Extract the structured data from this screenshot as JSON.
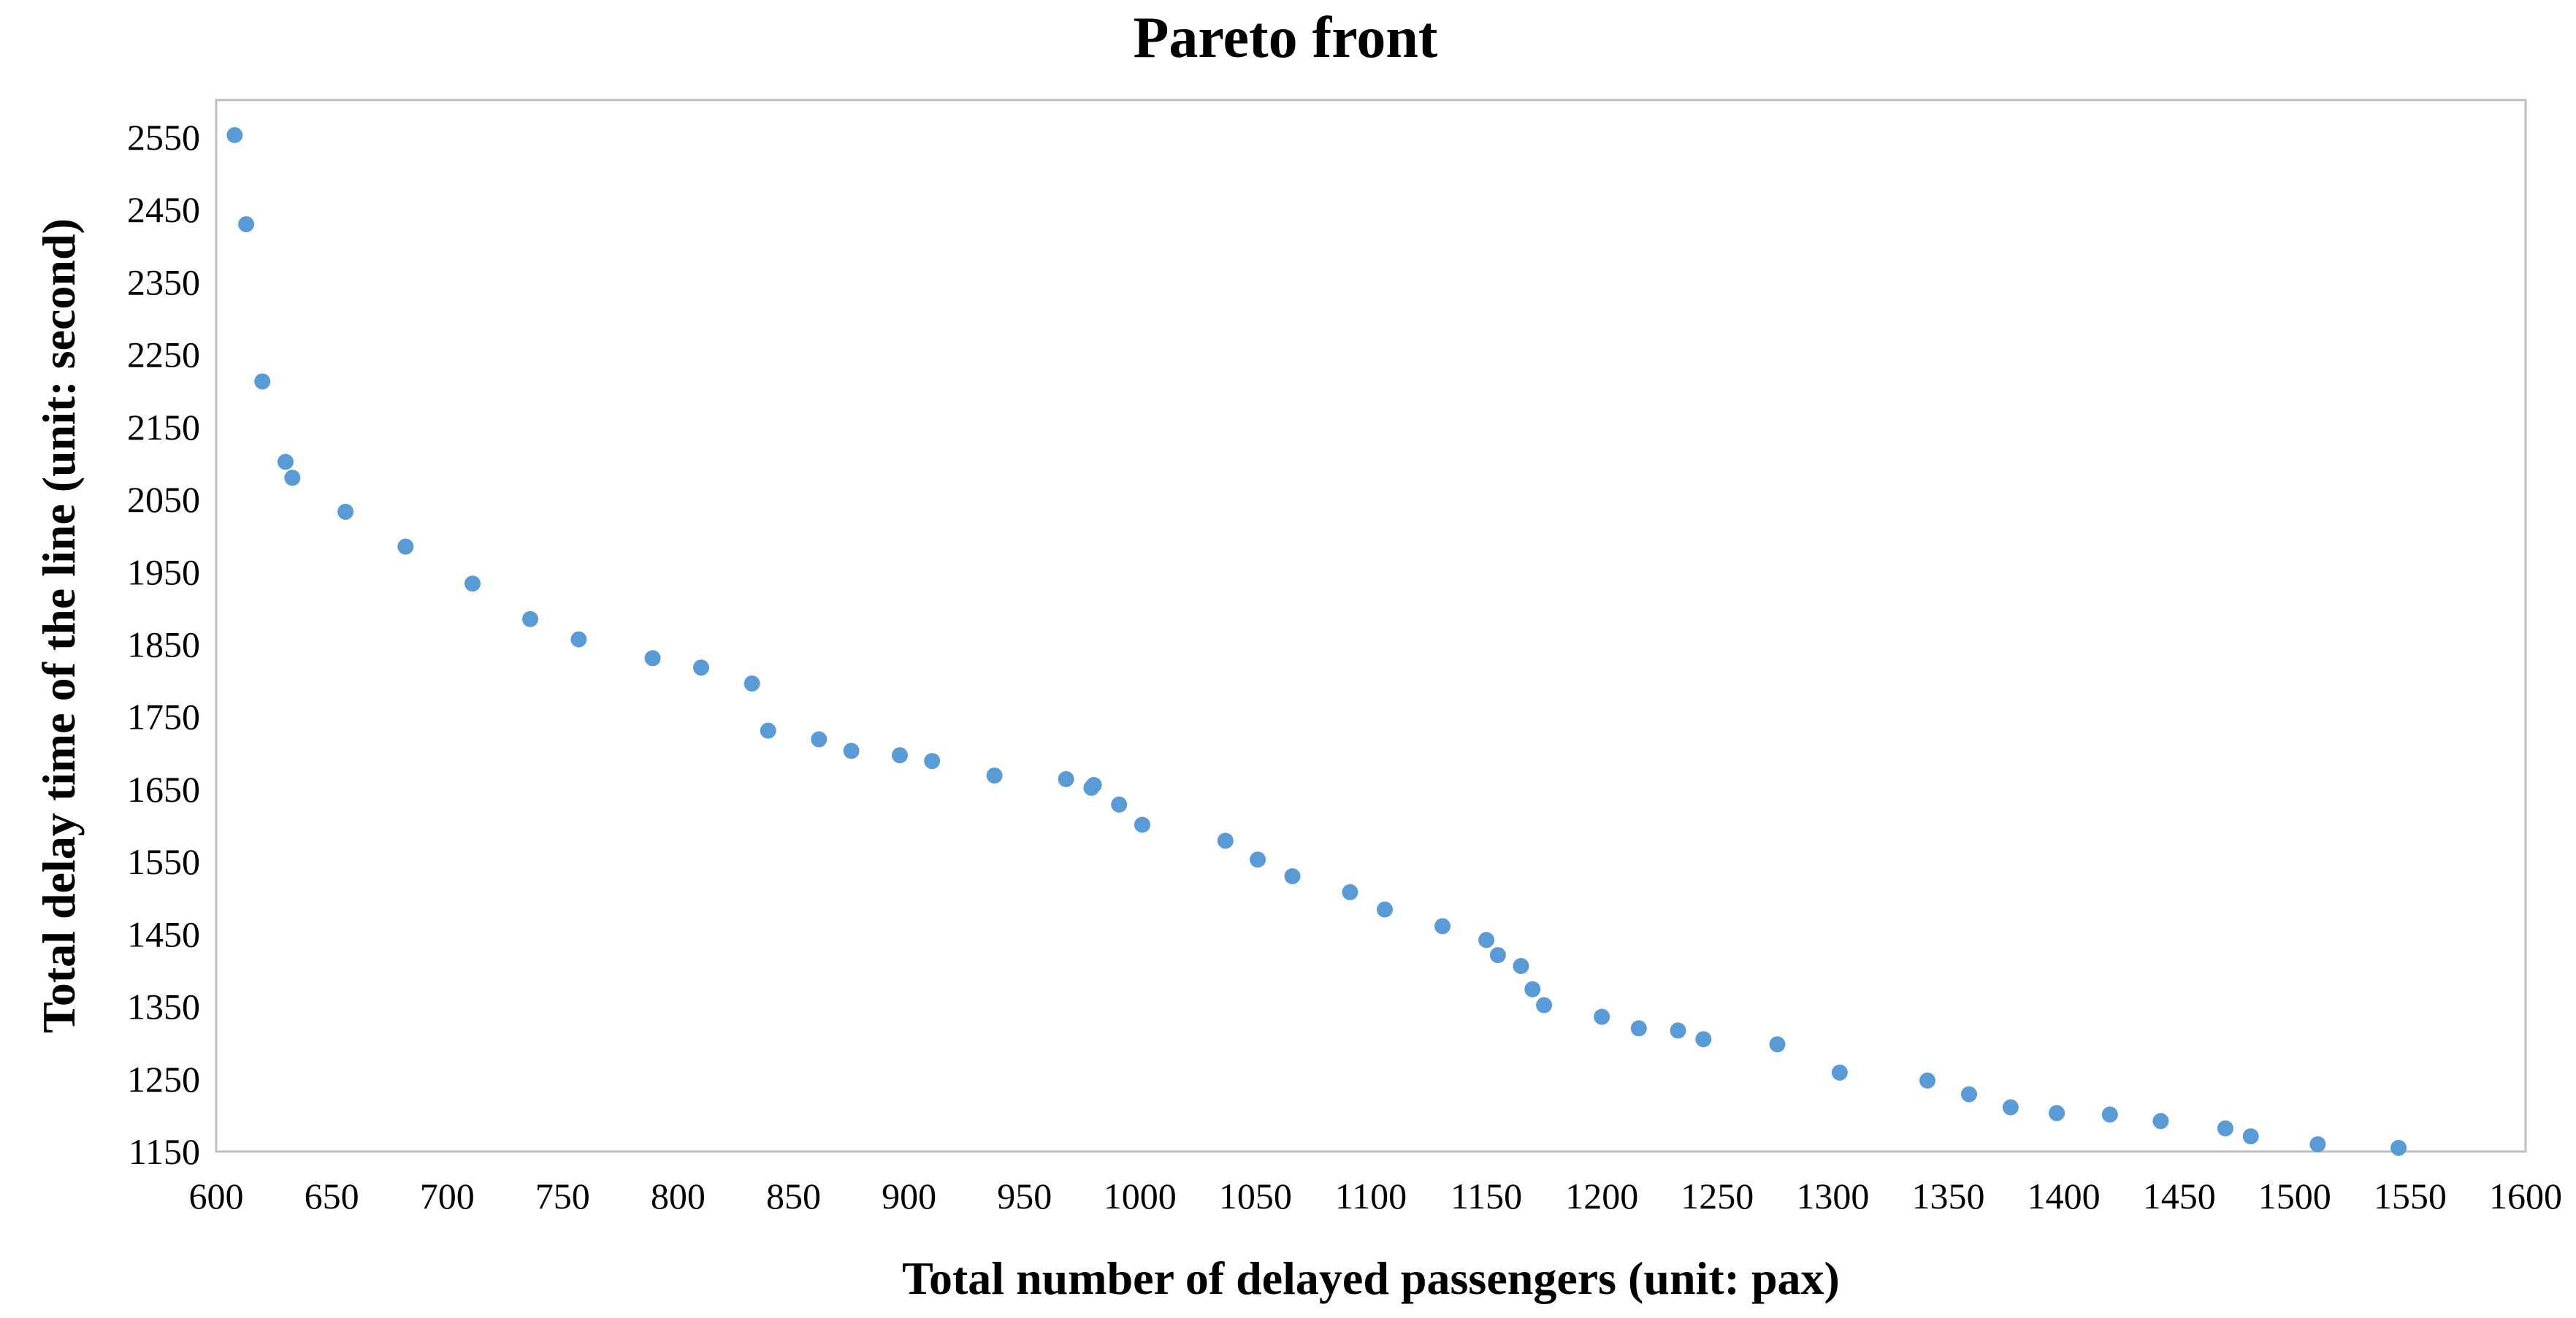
{
  "chart_data": {
    "type": "scatter",
    "title": "Pareto front",
    "xlabel": "Total number of delayed passengers (unit: pax)",
    "ylabel": "Total delay time of the line (unit: second)",
    "xlim": [
      600,
      1600
    ],
    "ylim": [
      1150,
      2600
    ],
    "x_ticks": [
      600,
      650,
      700,
      750,
      800,
      850,
      900,
      950,
      1000,
      1050,
      1100,
      1150,
      1200,
      1250,
      1300,
      1350,
      1400,
      1450,
      1500,
      1550,
      1600
    ],
    "y_ticks": [
      1150,
      1250,
      1350,
      1450,
      1550,
      1650,
      1750,
      1850,
      1950,
      2050,
      2150,
      2250,
      2350,
      2450,
      2550
    ],
    "grid": false,
    "legend": false,
    "marker_color": "#5b9bd5",
    "series": [
      {
        "name": "Pareto front",
        "points": [
          [
            608,
            2553
          ],
          [
            613,
            2430
          ],
          [
            620,
            2213
          ],
          [
            630,
            2102
          ],
          [
            633,
            2080
          ],
          [
            656,
            2033
          ],
          [
            682,
            1985
          ],
          [
            711,
            1934
          ],
          [
            736,
            1885
          ],
          [
            757,
            1857
          ],
          [
            789,
            1831
          ],
          [
            810,
            1818
          ],
          [
            832,
            1796
          ],
          [
            839,
            1731
          ],
          [
            861,
            1719
          ],
          [
            875,
            1703
          ],
          [
            896,
            1697
          ],
          [
            910,
            1689
          ],
          [
            937,
            1669
          ],
          [
            968,
            1664
          ],
          [
            979,
            1652
          ],
          [
            980,
            1656
          ],
          [
            991,
            1629
          ],
          [
            1001,
            1601
          ],
          [
            1037,
            1579
          ],
          [
            1051,
            1553
          ],
          [
            1066,
            1530
          ],
          [
            1091,
            1508
          ],
          [
            1106,
            1484
          ],
          [
            1131,
            1461
          ],
          [
            1150,
            1442
          ],
          [
            1155,
            1421
          ],
          [
            1165,
            1406
          ],
          [
            1170,
            1374
          ],
          [
            1175,
            1352
          ],
          [
            1200,
            1336
          ],
          [
            1216,
            1320
          ],
          [
            1233,
            1317
          ],
          [
            1244,
            1305
          ],
          [
            1276,
            1298
          ],
          [
            1303,
            1259
          ],
          [
            1341,
            1248
          ],
          [
            1359,
            1229
          ],
          [
            1377,
            1211
          ],
          [
            1397,
            1203
          ],
          [
            1420,
            1201
          ],
          [
            1442,
            1192
          ],
          [
            1470,
            1182
          ],
          [
            1481,
            1171
          ],
          [
            1510,
            1160
          ],
          [
            1545,
            1155
          ]
        ]
      }
    ]
  }
}
